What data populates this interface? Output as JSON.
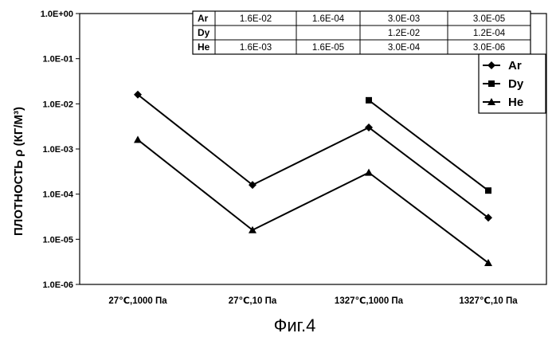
{
  "chart_data": {
    "type": "line",
    "title": "",
    "xlabel": "",
    "ylabel": "ПЛОТНОСТЬ ρ (КГ/М³)",
    "y_scale": "log",
    "ylim": [
      1e-06,
      1
    ],
    "y_ticks": [
      "1.0E+00",
      "1.0E-01",
      "1.0E-02",
      "1.0E-03",
      "1.0E-04",
      "1.0E-05",
      "1.0E-06"
    ],
    "categories": [
      "27℃,1000 Па",
      "27℃,10 Па",
      "1327℃,1000 Па",
      "1327℃,10 Па"
    ],
    "grid": false,
    "legend_position": "right",
    "series": [
      {
        "name": "Ar",
        "marker": "diamond",
        "values": [
          0.016,
          0.00016,
          0.003,
          3e-05
        ]
      },
      {
        "name": "Dy",
        "marker": "square",
        "values": [
          null,
          null,
          0.012,
          0.00012
        ]
      },
      {
        "name": "He",
        "marker": "triangle",
        "values": [
          0.0016,
          1.6e-05,
          0.0003,
          3e-06
        ]
      }
    ],
    "data_table": {
      "rows": [
        {
          "label": "Ar",
          "cells": [
            "1.6E-02",
            "1.6E-04",
            "3.0E-03",
            "3.0E-05"
          ]
        },
        {
          "label": "Dy",
          "cells": [
            "",
            "",
            "1.2E-02",
            "1.2E-04"
          ]
        },
        {
          "label": "He",
          "cells": [
            "1.6E-03",
            "1.6E-05",
            "3.0E-04",
            "3.0E-06"
          ]
        }
      ]
    }
  },
  "caption": "Фиг.4",
  "colors": {
    "ink": "#000000",
    "background": "#ffffff"
  }
}
